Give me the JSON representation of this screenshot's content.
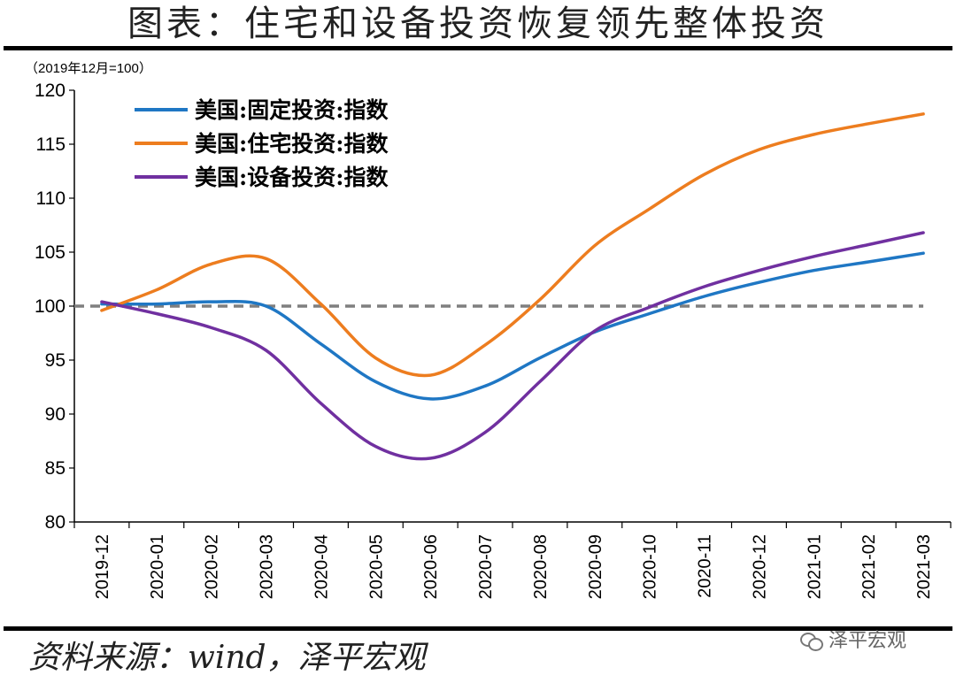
{
  "title": "图表：住宅和设备投资恢复领先整体投资",
  "source": "资料来源：wind，泽平宏观",
  "watermark": "泽平宏观",
  "chart_data": {
    "type": "line",
    "unit_label": "（2019年12月=100）",
    "categories": [
      "2019-12",
      "2020-01",
      "2020-02",
      "2020-03",
      "2020-04",
      "2020-05",
      "2020-06",
      "2020-07",
      "2020-08",
      "2020-09",
      "2020-10",
      "2020-11",
      "2020-12",
      "2021-01",
      "2021-02",
      "2021-03"
    ],
    "ylim": [
      80,
      120
    ],
    "yticks": [
      80,
      85,
      90,
      95,
      100,
      105,
      110,
      115,
      120
    ],
    "legend_position": "top-left",
    "grid": false,
    "reference_line": {
      "value": 100,
      "color": "#7f7f7f",
      "style": "dashed"
    },
    "series": [
      {
        "name": "美国:固定投资:指数",
        "color": "#1f77c4",
        "values": [
          100.2,
          100.2,
          100.4,
          100.0,
          96.5,
          93.0,
          91.4,
          92.6,
          95.2,
          97.6,
          99.3,
          100.9,
          102.2,
          103.3,
          104.1,
          104.9
        ]
      },
      {
        "name": "美国:住宅投资:指数",
        "color": "#ed7d1f",
        "values": [
          99.6,
          101.5,
          103.9,
          104.4,
          100.2,
          95.2,
          93.6,
          96.4,
          100.6,
          105.6,
          109.0,
          112.2,
          114.5,
          115.9,
          116.9,
          117.8
        ]
      },
      {
        "name": "美国:设备投资:指数",
        "color": "#7030a0",
        "values": [
          100.4,
          99.3,
          98.0,
          95.9,
          91.0,
          87.0,
          85.9,
          88.3,
          93.0,
          97.7,
          99.9,
          101.8,
          103.3,
          104.6,
          105.7,
          106.8
        ]
      }
    ]
  }
}
